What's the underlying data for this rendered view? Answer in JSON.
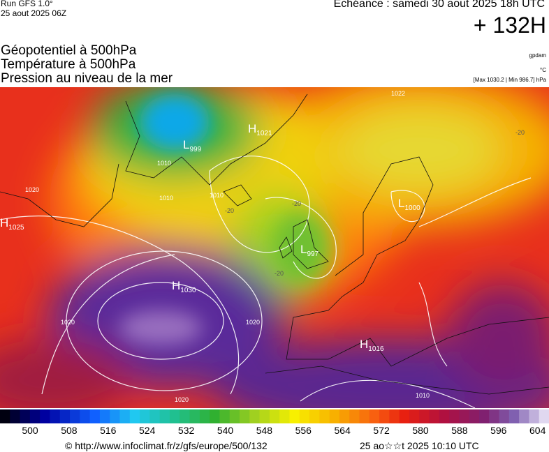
{
  "header": {
    "run": "Run GFS 1.0°",
    "run_date": "25 aout 2025 06Z",
    "valid": "Echéance : samedi 30 aout 2025 18h UTC",
    "lead": "+ 132H",
    "fields": [
      "Géopotentiel à 500hPa",
      "Température à 500hPa",
      "Pression au niveau de la mer"
    ],
    "units": [
      "gpdam",
      "°C",
      "[Max 1030.2 | Min 986.7] hPa"
    ]
  },
  "map": {
    "centers": [
      {
        "letter": "H",
        "value": "1021"
      },
      {
        "letter": "L",
        "value": "999"
      },
      {
        "letter": "H",
        "value": "1025"
      },
      {
        "letter": "H",
        "value": "1030"
      },
      {
        "letter": "L",
        "value": "1000"
      },
      {
        "letter": "H",
        "value": "1016"
      },
      {
        "letter": "L",
        "value": "997"
      }
    ],
    "contour_labels": [
      "1020",
      "1020",
      "1020",
      "1010",
      "1010",
      "1010",
      "1022",
      "1010",
      "1020"
    ],
    "temperature_labels": [
      "-20",
      "-20",
      "-20",
      "-20"
    ]
  },
  "colorbar": {
    "labels": [
      "500",
      "508",
      "516",
      "524",
      "532",
      "540",
      "548",
      "556",
      "564",
      "572",
      "580",
      "588",
      "596",
      "604"
    ]
  },
  "footer": {
    "source": "© http://www.infoclimat.fr/z/gfs/europe/500/132",
    "generated": "25 ao☆☆t 2025 10:10 UTC"
  }
}
